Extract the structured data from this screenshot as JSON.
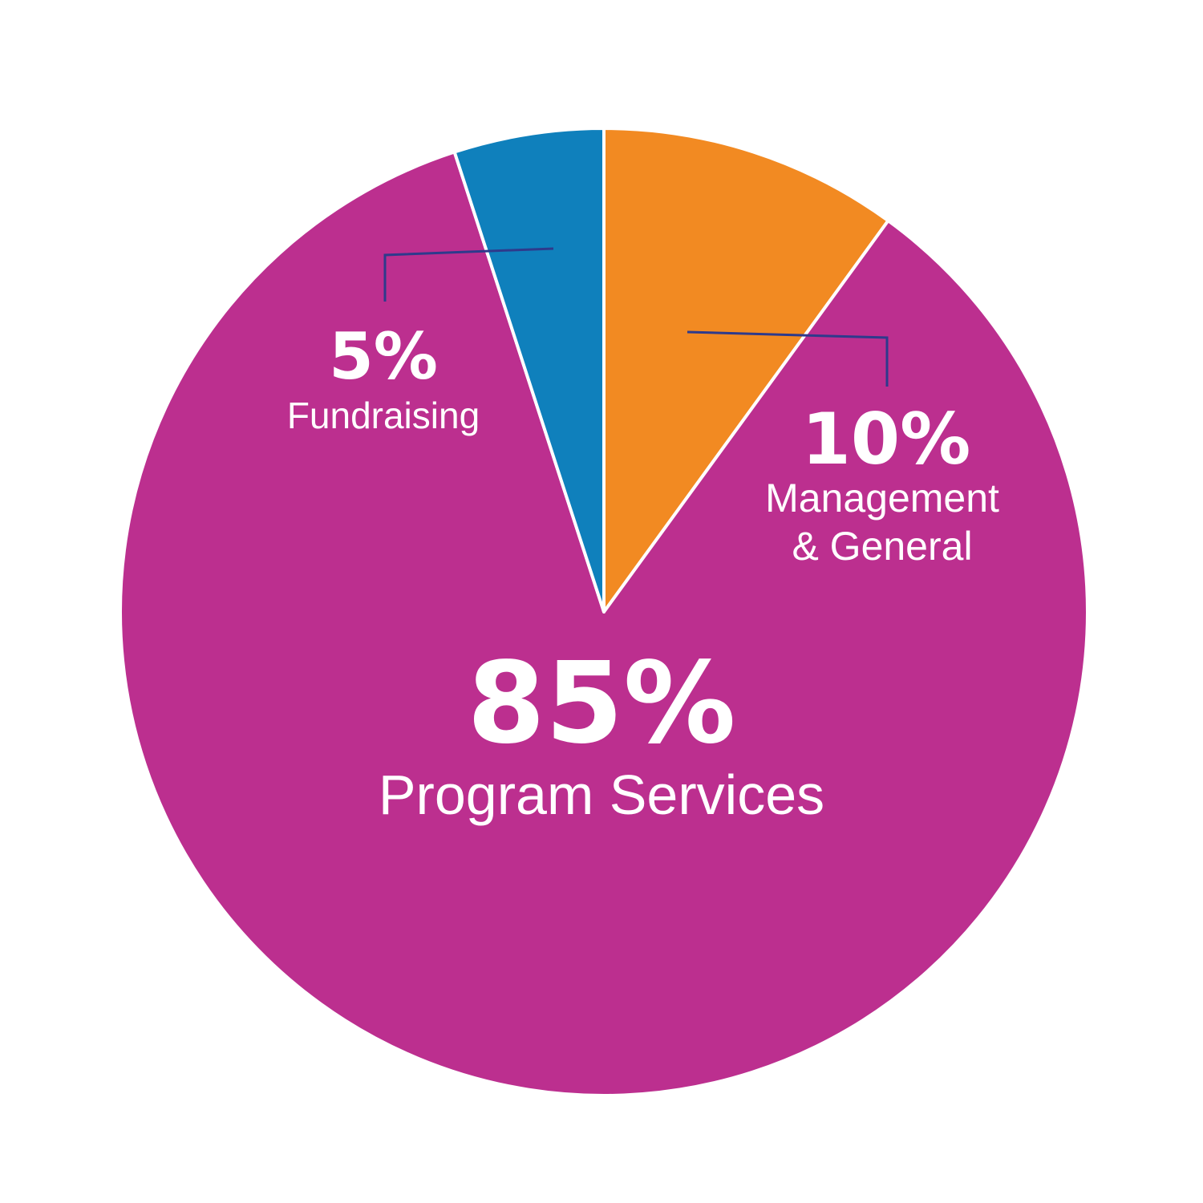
{
  "chart_data": {
    "type": "pie",
    "start_angle_deg": 0,
    "slices": [
      {
        "label": "Management & General",
        "label_lines": [
          "Management",
          "& General"
        ],
        "value": 10,
        "value_text": "10%",
        "color": "#F28A22"
      },
      {
        "label": "Program Services",
        "label_lines": [
          "Program Services"
        ],
        "value": 85,
        "value_text": "85%",
        "color": "#BC2F8F"
      },
      {
        "label": "Fundraising",
        "label_lines": [
          "Fundraising"
        ],
        "value": 5,
        "value_text": "5%",
        "color": "#0F80BC"
      }
    ],
    "slice_border_color": "#ffffff",
    "leader_line_color": "#2E3A8C"
  }
}
